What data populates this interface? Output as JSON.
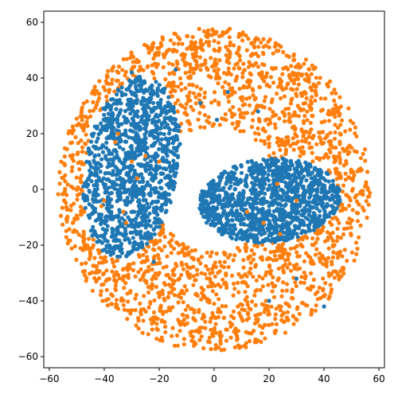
{
  "chart_data": {
    "type": "scatter",
    "xlim": [
      -62,
      62
    ],
    "ylim": [
      -64,
      64
    ],
    "x_ticks": [
      -60,
      -40,
      -20,
      0,
      20,
      40,
      60
    ],
    "y_ticks": [
      -60,
      -40,
      -20,
      0,
      20,
      40,
      60
    ],
    "x_tick_labels": [
      "−60",
      "−40",
      "−20",
      "0",
      "20",
      "40",
      "60"
    ],
    "y_tick_labels": [
      "−60",
      "−40",
      "−20",
      "0",
      "20",
      "40",
      "60"
    ],
    "grid": false,
    "series": [
      {
        "color": "#1f77b4",
        "clusters": [
          {
            "center": [
              -30,
              8
            ],
            "radius": [
              17,
              33
            ],
            "rotation_deg": -10,
            "points": 1200
          },
          {
            "center": [
              20,
              -4
            ],
            "radius": [
              26,
              15
            ],
            "rotation_deg": 5,
            "points": 1200
          }
        ],
        "stray_points": [
          [
            -14,
            43
          ],
          [
            -30,
            42
          ],
          [
            5,
            35
          ],
          [
            16,
            28
          ],
          [
            1,
            25
          ],
          [
            -5,
            31
          ],
          [
            40,
            -42
          ],
          [
            30,
            -32
          ],
          [
            20,
            -40
          ],
          [
            -22,
            -26
          ]
        ]
      },
      {
        "color": "#ff7f0e",
        "ring_radius_range": [
          0,
          58
        ],
        "points": 2600,
        "inside_blue_points": [
          [
            -35,
            20
          ],
          [
            -30,
            10
          ],
          [
            -25,
            12
          ],
          [
            -28,
            4
          ],
          [
            -33,
            -8
          ],
          [
            -40,
            -4
          ],
          [
            -20,
            10
          ],
          [
            -36,
            17
          ],
          [
            -32,
            -12
          ],
          [
            -41,
            -6
          ],
          [
            23,
            2
          ],
          [
            18,
            -12
          ],
          [
            24,
            -16
          ],
          [
            30,
            -4
          ],
          [
            12,
            -8
          ]
        ]
      }
    ]
  }
}
